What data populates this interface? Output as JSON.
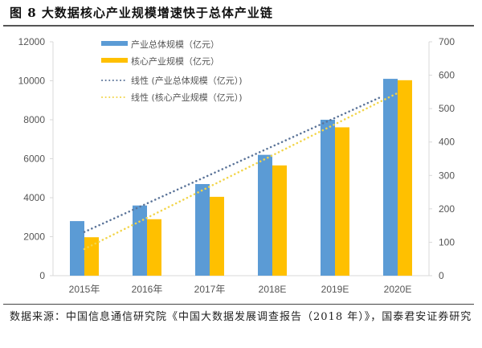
{
  "figure": {
    "title": "图 8  大数据核心产业规模增速快于总体产业链",
    "source": "数据来源：中国信息通信研究院《中国大数据发展调查报告（2018 年）》，国泰君安证券研究"
  },
  "colors": {
    "total": "#5B9BD5",
    "core": "#FFC000",
    "total_trend": "#5A7398",
    "core_trend": "#F2D54A",
    "axis": "#D9D9D9",
    "tick_text": "#595959"
  },
  "chart_data": {
    "type": "bar",
    "title": "大数据核心产业规模增速快于总体产业链",
    "xlabel": "",
    "ylabel": "",
    "categories": [
      "2015年",
      "2016年",
      "2017年",
      "2018E",
      "2019E",
      "2020E"
    ],
    "series": [
      {
        "name": "产业总体规模（亿元）",
        "axis": "left",
        "type": "bar",
        "values": [
          2800,
          3600,
          4700,
          6200,
          8000,
          10100
        ]
      },
      {
        "name": "核心产业规模（亿元）",
        "axis": "right",
        "type": "bar",
        "values": [
          115,
          169,
          236,
          330,
          444,
          585
        ]
      }
    ],
    "trendlines": [
      {
        "name": "线性 (产业总体规模（亿元）)",
        "of_series": 0,
        "style": "dotted",
        "axis": "left"
      },
      {
        "name": "线性 (核心产业规模（亿元）)",
        "of_series": 1,
        "style": "dotted",
        "axis": "right"
      }
    ],
    "y_left": {
      "lim": [
        0,
        12000
      ],
      "ticks": [
        "0",
        "2000",
        "4000",
        "6000",
        "8000",
        "10000",
        "12000"
      ]
    },
    "y_right": {
      "lim": [
        0,
        700
      ],
      "ticks": [
        "0",
        "100",
        "200",
        "300",
        "400",
        "500",
        "600",
        "700"
      ]
    },
    "grid": false,
    "legend_position": "top-left"
  }
}
